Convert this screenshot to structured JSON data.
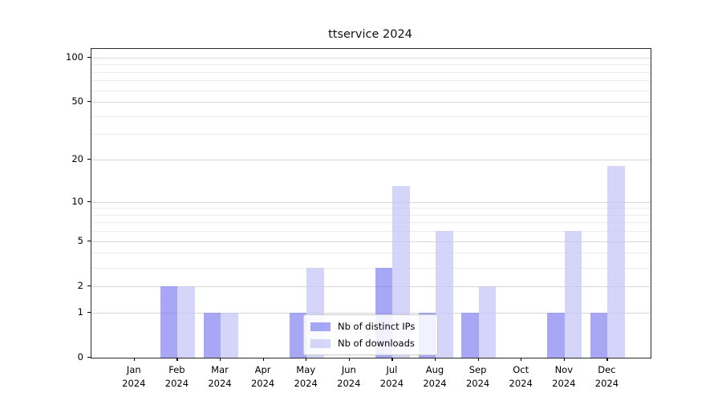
{
  "chart_data": {
    "type": "bar",
    "title": "ttservice 2024",
    "categories": [
      "Jan",
      "Feb",
      "Mar",
      "Apr",
      "May",
      "Jun",
      "Jul",
      "Aug",
      "Sep",
      "Oct",
      "Nov",
      "Dec"
    ],
    "x_year_label": "2024",
    "series": [
      {
        "name": "Nb of distinct IPs",
        "color": "rgba(120,120,240,0.65)",
        "values": [
          0,
          2,
          1,
          0,
          1,
          0,
          3,
          1,
          1,
          0,
          1,
          1
        ]
      },
      {
        "name": "Nb of downloads",
        "color": "rgba(197,197,247,0.72)",
        "values": [
          0,
          2,
          1,
          0,
          3,
          0,
          13,
          6,
          2,
          0,
          6,
          18
        ]
      }
    ],
    "y_axis": {
      "scale": "log10(1+v)",
      "tick_labels": [
        0,
        1,
        2,
        5,
        10,
        20,
        50,
        100
      ],
      "minor_gridlines": [
        3,
        4,
        6,
        7,
        8,
        9,
        30,
        40,
        60,
        70,
        80,
        90
      ],
      "range": [
        0,
        113
      ]
    },
    "grid": true,
    "legend_position": "lower center",
    "colors": {
      "major_grid": "#d7d7d7",
      "minor_grid": "#ececec",
      "spine": "#2a2a2a"
    }
  }
}
